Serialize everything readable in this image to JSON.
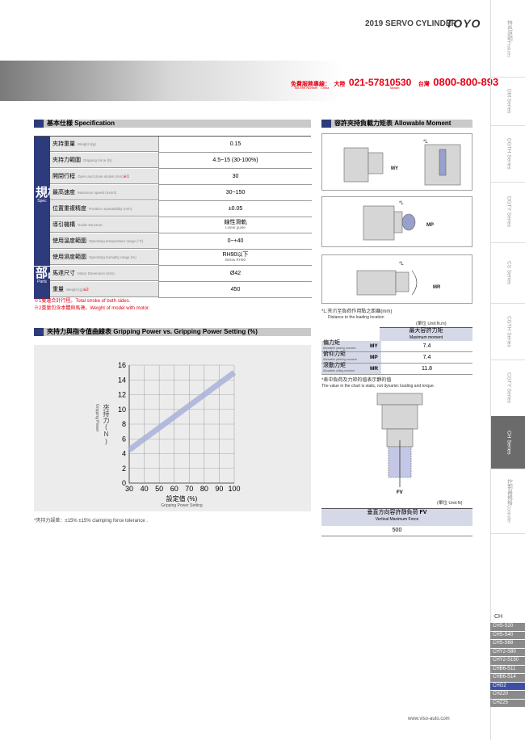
{
  "header": {
    "title": "2019 SERVO CYLINDER",
    "brand": "TOYO"
  },
  "hotline": {
    "label": "免費服務專線：",
    "label_en": "Toll-free Number",
    "china": "大陸",
    "china_en": "China",
    "china_number": "021-57810530",
    "taiwan": "台灣",
    "taiwan_en": "Taiwan",
    "taiwan_number": "0800-800-893"
  },
  "side_tabs": [
    {
      "label": "特色說明",
      "label_en": "Features"
    },
    {
      "label": "DM Series"
    },
    {
      "label": "DGTH Series"
    },
    {
      "label": "DGTY Series"
    },
    {
      "label": "CS Series"
    },
    {
      "label": "CGTH Series"
    },
    {
      "label": "CGTY Series"
    },
    {
      "label": "CH Series",
      "active": true
    },
    {
      "label": "控制器規格",
      "label_en": "Controller"
    }
  ],
  "model_list": {
    "title": "CH",
    "items": [
      "CHS-S20",
      "CHS-S40",
      "CHS-S68",
      "CHY2-S80",
      "CHY2-S150",
      "CHB6-S11",
      "CHB6-S14",
      "CHG2",
      "CHZ20",
      "CHZ25"
    ],
    "active": "CHG2"
  },
  "spec": {
    "title": "基本仕様",
    "title_en": "Specification",
    "group_spec": "規格",
    "group_spec_en": "Spec",
    "group_parts": "部品",
    "group_parts_en": "Parts",
    "rows": [
      {
        "label": "夾持重量",
        "label_en": "Weight (kg)",
        "value": "0.15"
      },
      {
        "label": "夾持力範圍",
        "label_en": "Gripping force (N)",
        "value": "4.5~15 (30-100%)"
      },
      {
        "label": "開閉行程",
        "label_en": "Open and close stroke (mm)",
        "mark": "※1",
        "value": "30"
      },
      {
        "label": "最高速度",
        "label_en": "Maximum speed (mm/s)",
        "value": "30~150"
      },
      {
        "label": "位置重複精度",
        "label_en": "Position repeatability (mm)",
        "value": "±0.05"
      },
      {
        "label": "導引機構",
        "label_en": "Guide structure",
        "value": "線性滑軌",
        "value_en": "Linear guide"
      },
      {
        "label": "使用溫度範圍",
        "label_en": "Operating temperature range (°C)",
        "value": "0~+40"
      },
      {
        "label": "使用濕度範圍",
        "label_en": "Operating humidity range (%)",
        "value": "RH90以下",
        "value_en": "Below RH90"
      },
      {
        "label": "馬達尺寸",
        "label_en": "Motor Dimension (mm)",
        "value": "Ø42"
      },
      {
        "label": "重量",
        "label_en": "Weight (g)",
        "mark": "※2",
        "value": "450"
      }
    ],
    "notes": [
      "※1雙邊合計行程。Total stroke of both sides.",
      "※2重量包含本體與馬達。Weight of model with motor."
    ]
  },
  "gripping": {
    "title": "夾持力與指令值曲線表",
    "title_en": "Gripping Power vs. Gripping Power Setting (%)",
    "chart": {
      "type": "line",
      "x": [
        30,
        100
      ],
      "values": [
        4.5,
        15
      ],
      "color": "#a9b1d9",
      "xlim": [
        30,
        100
      ],
      "ylim": [
        0,
        16
      ],
      "xticks": [
        30,
        40,
        50,
        60,
        70,
        80,
        90,
        100
      ],
      "yticks": [
        0,
        2,
        4,
        6,
        8,
        10,
        12,
        14,
        16
      ],
      "grid": true,
      "y_label": "夾持力(N)",
      "y_label_en": "Gripping Power",
      "x_label": "設定值 (%)",
      "x_label_en": "Gripping Power Setting"
    },
    "note": "*夾持力誤差：±15%  ±15% clamping force tolerance ."
  },
  "moment": {
    "title": "容許夾持負載力矩表",
    "title_en": "Allowable Moment",
    "diagrams": [
      {
        "label": "MY",
        "dim": "*L"
      },
      {
        "label": "MP",
        "dim": "*L"
      },
      {
        "label": "MR",
        "dim": "*L"
      }
    ],
    "note": "*L:夾爪至負荷作用點之距離(mm)",
    "note_en": "Distance to the loading location",
    "unit": "(單位  Unit:N.m)",
    "table_header": "最大容許力矩",
    "table_header_en": "Maximum moment",
    "rows": [
      {
        "label": "偏力矩",
        "label_en": "Allowable yawing moment",
        "symbol": "MY",
        "value": 7.4
      },
      {
        "label": "俯仰力矩",
        "label_en": "Allowable pitching moment",
        "symbol": "MP",
        "value": 7.4
      },
      {
        "label": "滾動力矩",
        "label_en": "Allowable rolling moment",
        "symbol": "MR",
        "value": 11.8
      }
    ],
    "static_note": "*表中負荷及力矩的值表示靜的值",
    "static_note_en": "The value in the chart is static, not dynamic loading and torque."
  },
  "vertical": {
    "diagram_label": "FV",
    "unit": "(單位  Unit:N)",
    "header": "垂直方向容許靜負荷",
    "symbol": "FV",
    "header_en": "Vertical Maximum Force",
    "value": 500
  },
  "footer": {
    "url": "www.viso-auto.com"
  }
}
